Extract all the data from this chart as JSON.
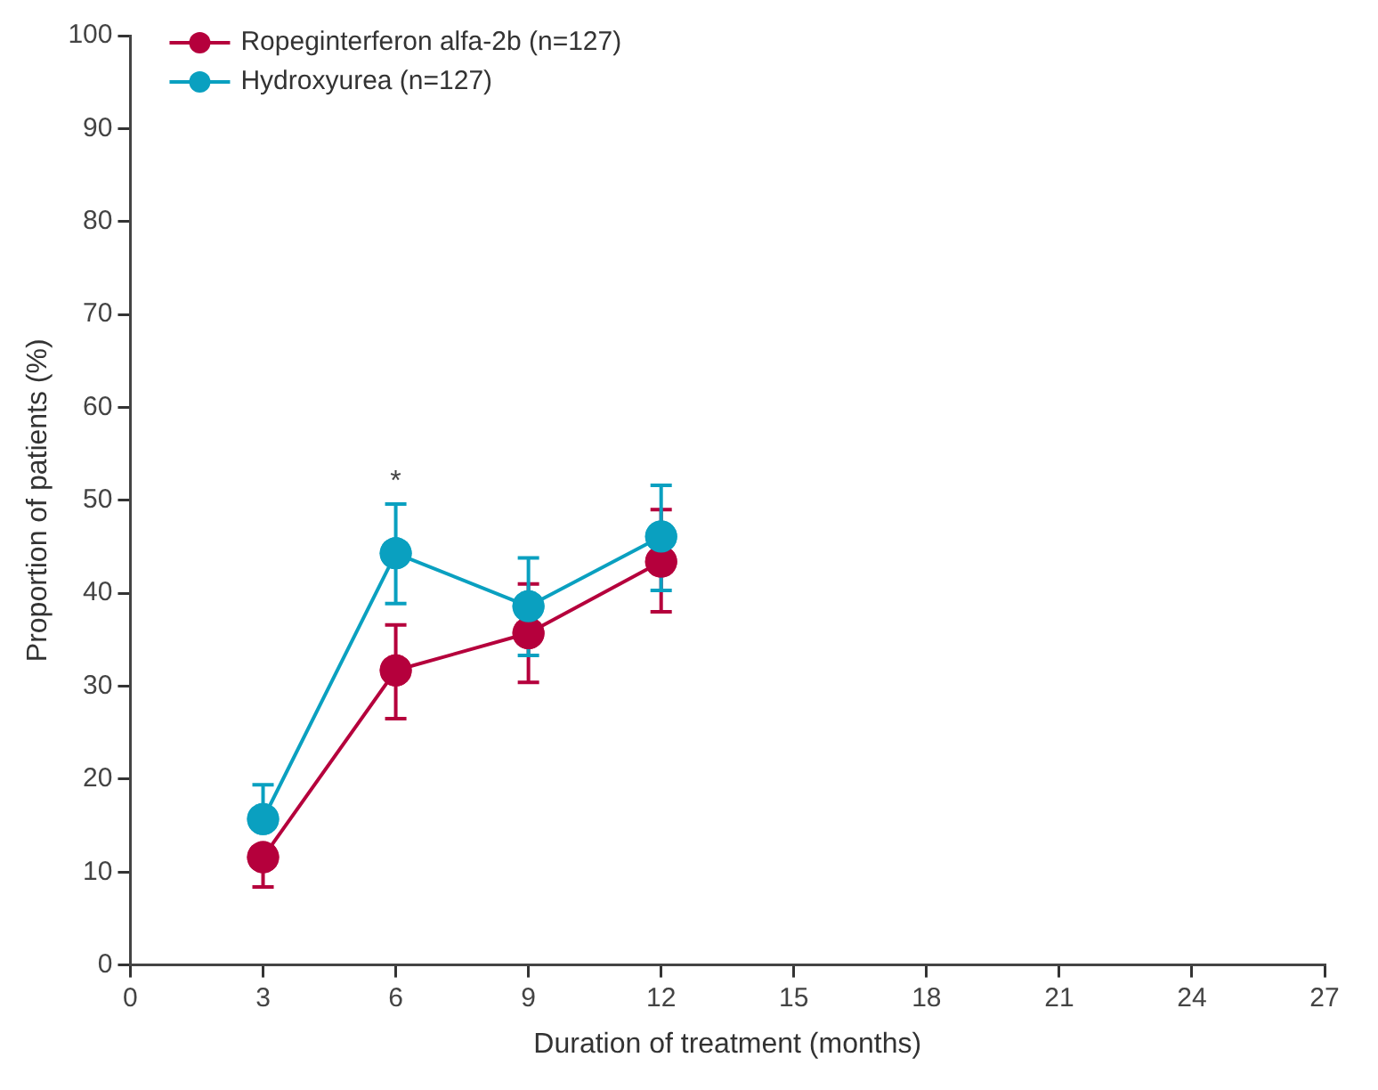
{
  "chart_data": {
    "type": "line",
    "xlabel": "Duration of treatment (months)",
    "ylabel": "Proportion of patients (%)",
    "x": [
      3,
      6,
      9,
      12
    ],
    "series": [
      {
        "name": "Ropeginterferon alfa-2b (n=127)",
        "color": "#b5003c",
        "values": [
          11.6,
          31.7,
          35.7,
          43.4
        ],
        "errors": [
          [
            8.4,
            11.6
          ],
          [
            26.5,
            36.6
          ],
          [
            30.4,
            41.0
          ],
          [
            38.0,
            49.0
          ]
        ]
      },
      {
        "name": "Hydroxyurea (n=127)",
        "color": "#0aa0c0",
        "values": [
          15.7,
          44.3,
          38.6,
          46.1
        ],
        "errors": [
          [
            15.7,
            19.4
          ],
          [
            38.9,
            49.6
          ],
          [
            33.3,
            43.8
          ],
          [
            40.3,
            51.6
          ]
        ]
      }
    ],
    "xlim": [
      0,
      27
    ],
    "xticks": [
      0,
      3,
      6,
      9,
      12,
      15,
      18,
      21,
      24,
      27
    ],
    "ylim": [
      0,
      100
    ],
    "yticks": [
      0,
      10,
      20,
      30,
      40,
      50,
      60,
      70,
      80,
      90,
      100
    ],
    "annotations": [
      "*"
    ],
    "grid": false,
    "legend": "top left",
    "marker": "circle",
    "line_style": "solid"
  }
}
